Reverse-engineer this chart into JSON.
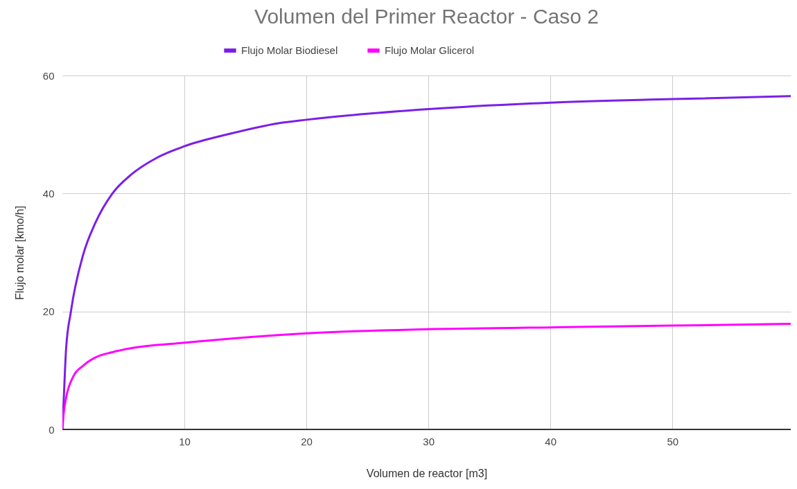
{
  "chart_data": {
    "type": "line",
    "title": "Volumen del Primer Reactor - Caso 2",
    "xlabel": "Volumen de reactor [m3]",
    "ylabel": "Flujo molar  [kmo/h]",
    "xlim": [
      0,
      59.7
    ],
    "xticks": [
      10,
      20,
      30,
      40,
      50
    ],
    "ylim": [
      0,
      60
    ],
    "yticks": [
      0,
      20,
      40,
      60
    ],
    "grid": true,
    "legend": "top",
    "marker": "none",
    "line_style": "solid",
    "series": [
      {
        "name": "Flujo Molar Biodiesel",
        "color": "#7b1fe8",
        "x": [
          0,
          0.1,
          0.3,
          0.7,
          1.7,
          2.7,
          4.1,
          5.7,
          7.7,
          10,
          13.7,
          17.7,
          20,
          30,
          40,
          50,
          59.7
        ],
        "values": [
          0,
          4.5,
          13.5,
          20,
          29.6,
          35,
          40,
          43.3,
          46,
          48,
          50.1,
          51.9,
          52.5,
          54.3,
          55.4,
          56,
          56.5
        ]
      },
      {
        "name": "Flujo Molar Glicerol",
        "color": "#ff00ff",
        "x": [
          0,
          0.1,
          0.3,
          0.9,
          1.7,
          2.7,
          4.1,
          5.7,
          10,
          17.7,
          20,
          30,
          40,
          50,
          59.7
        ],
        "values": [
          0,
          2.6,
          5.3,
          9,
          10.8,
          12.2,
          13.1,
          13.8,
          14.7,
          16,
          16.3,
          17,
          17.3,
          17.6,
          17.9
        ]
      }
    ]
  }
}
